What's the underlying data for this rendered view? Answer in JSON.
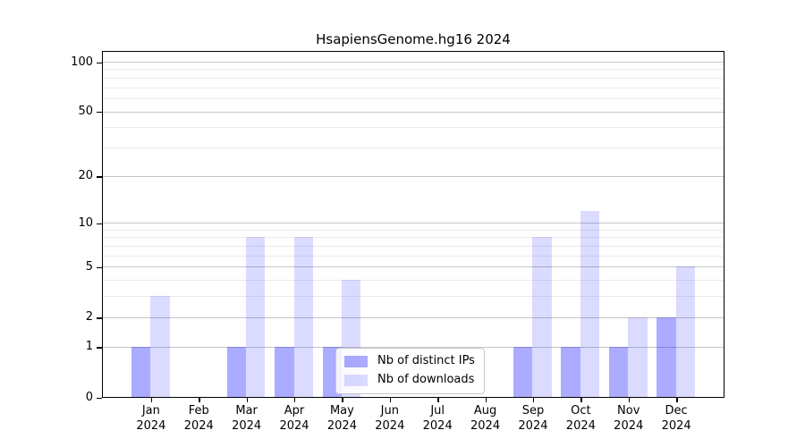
{
  "chart_data": {
    "type": "bar",
    "title": "HsapiensGenome.hg16 2024",
    "categories": [
      "Jan",
      "Feb",
      "Mar",
      "Apr",
      "May",
      "Jun",
      "Jul",
      "Aug",
      "Sep",
      "Oct",
      "Nov",
      "Dec"
    ],
    "x_year": "2024",
    "series": [
      {
        "name": "Nb of distinct IPs",
        "color": "rgba(0,0,255,0.33)",
        "values": [
          1,
          0,
          1,
          1,
          1,
          0,
          0,
          0,
          1,
          1,
          1,
          2
        ]
      },
      {
        "name": "Nb of downloads",
        "color": "rgba(0,0,255,0.14)",
        "values": [
          3,
          0,
          8,
          8,
          4,
          0,
          0,
          0,
          8,
          12,
          2,
          5
        ]
      }
    ],
    "y_scale": "log1p",
    "y_major_ticks": [
      0,
      1,
      2,
      5,
      10,
      20,
      50,
      100
    ],
    "y_minor_ticks": [
      3,
      4,
      6,
      7,
      8,
      9,
      30,
      40,
      60,
      70,
      80,
      90
    ],
    "ylim": [
      0,
      115
    ],
    "xlabel": "",
    "ylabel": "",
    "grid": "on",
    "legend_position": "lower-center",
    "colors": {
      "grid_major": "#c6c6c6",
      "grid_minor": "#ebebeb",
      "axis": "#000000",
      "bar_distinct_ips_effective": "#aaaaff",
      "bar_downloads_effective": "#dedeff"
    }
  }
}
